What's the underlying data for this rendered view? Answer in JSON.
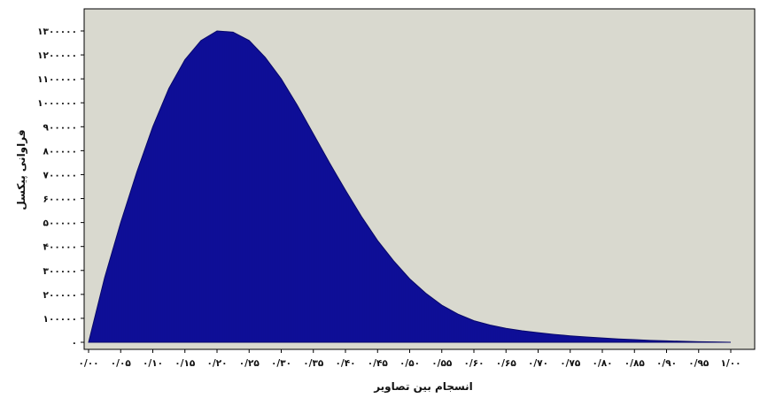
{
  "chart_data": {
    "type": "area",
    "xlabel": "انسجام بین تصاویر",
    "ylabel": "فراوانی پیکسل",
    "xlim": [
      0,
      1.0
    ],
    "ylim": [
      0,
      1300000
    ],
    "x_ticks": [
      0,
      0.05,
      0.1,
      0.15,
      0.2,
      0.25,
      0.3,
      0.35,
      0.4,
      0.45,
      0.5,
      0.55,
      0.6,
      0.65,
      0.7,
      0.75,
      0.8,
      0.85,
      0.9,
      0.95,
      1.0
    ],
    "x_tick_labels": [
      "۰/۰۰",
      "۰/۰۵",
      "۰/۱۰",
      "۰/۱۵",
      "۰/۲۰",
      "۰/۲۵",
      "۰/۳۰",
      "۰/۳۵",
      "۰/۴۰",
      "۰/۴۵",
      "۰/۵۰",
      "۰/۵۵",
      "۰/۶۰",
      "۰/۶۵",
      "۰/۷۰",
      "۰/۷۵",
      "۰/۸۰",
      "۰/۸۵",
      "۰/۹۰",
      "۰/۹۵",
      "۱/۰۰"
    ],
    "y_ticks": [
      0,
      100000,
      200000,
      300000,
      400000,
      500000,
      600000,
      700000,
      800000,
      900000,
      1000000,
      1100000,
      1200000,
      1300000
    ],
    "y_tick_labels": [
      "۰",
      "۱۰۰۰۰۰",
      "۲۰۰۰۰۰",
      "۳۰۰۰۰۰",
      "۴۰۰۰۰۰",
      "۵۰۰۰۰۰",
      "۶۰۰۰۰۰",
      "۷۰۰۰۰۰",
      "۸۰۰۰۰۰",
      "۹۰۰۰۰۰",
      "۱۰۰۰۰۰۰",
      "۱۱۰۰۰۰۰",
      "۱۲۰۰۰۰۰",
      "۱۳۰۰۰۰۰"
    ],
    "grid": false,
    "legend": "none",
    "colors": {
      "fill": "#1010a0",
      "bar_line": "#08086a",
      "plot_bg": "#d9d9cf",
      "frame": "#000000"
    },
    "x": [
      0,
      0.025,
      0.05,
      0.075,
      0.1,
      0.125,
      0.15,
      0.175,
      0.2,
      0.225,
      0.25,
      0.275,
      0.3,
      0.325,
      0.35,
      0.375,
      0.4,
      0.425,
      0.45,
      0.475,
      0.5,
      0.525,
      0.55,
      0.575,
      0.6,
      0.625,
      0.65,
      0.675,
      0.7,
      0.725,
      0.75,
      0.775,
      0.8,
      0.825,
      0.85,
      0.875,
      0.9,
      0.925,
      0.95,
      0.975,
      1.0
    ],
    "values": [
      0,
      270000,
      500000,
      710000,
      900000,
      1060000,
      1180000,
      1260000,
      1300000,
      1295000,
      1260000,
      1190000,
      1100000,
      990000,
      870000,
      750000,
      635000,
      525000,
      425000,
      340000,
      265000,
      205000,
      155000,
      118000,
      90000,
      72000,
      58000,
      48000,
      40000,
      33000,
      27000,
      22000,
      18000,
      14000,
      11000,
      8000,
      6000,
      4000,
      2500,
      1200,
      0
    ]
  }
}
